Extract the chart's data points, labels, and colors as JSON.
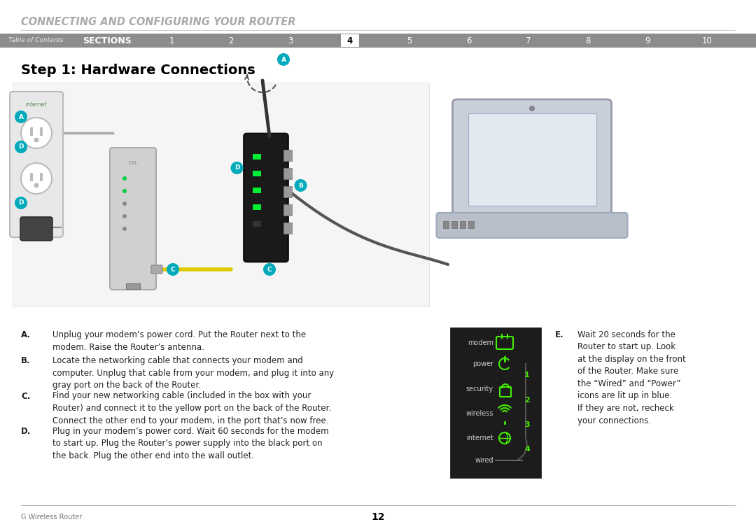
{
  "page_title": "CONNECTING AND CONFIGURING YOUR ROUTER",
  "page_title_color": "#aaaaaa",
  "nav_bg_color": "#8c8c8c",
  "nav_label": "Table of Contents",
  "nav_sections_label": "SECTIONS",
  "nav_numbers": [
    "1",
    "2",
    "3",
    "4",
    "5",
    "6",
    "7",
    "8",
    "9",
    "10"
  ],
  "nav_active": "4",
  "step_title": "Step 1: Hardware Connections",
  "body_text_color": "#222222",
  "bg_color": "#ffffff",
  "footer_left": "G Wireless Router",
  "footer_center": "12",
  "footer_line_color": "#bbbbbb",
  "items": [
    {
      "letter": "A.",
      "text": "Unplug your modem’s power cord. Put the Router next to the\nmodem. Raise the Router’s antenna."
    },
    {
      "letter": "B.",
      "text": "Locate the networking cable that connects your modem and\ncomputer. Unplug that cable from your modem, and plug it into any\ngray port on the back of the Router."
    },
    {
      "letter": "C.",
      "text": "Find your new networking cable (included in the box with your\nRouter) and connect it to the yellow port on the back of the Router.\nConnect the other end to your modem, in the port that’s now free."
    },
    {
      "letter": "D.",
      "text": "Plug in your modem’s power cord. Wait 60 seconds for the modem\nto start up. Plug the Router’s power supply into the black port on\nthe back. Plug the other end into the wall outlet."
    }
  ],
  "item_e_letter": "E.",
  "item_e_text": "Wait 20 seconds for the\nRouter to start up. Look\nat the display on the front\nof the Router. Make sure\nthe “Wired” and “Power”\nicons are lit up in blue.\nIf they are not, recheck\nyour connections.",
  "panel_labels": [
    "modem",
    "power",
    "security",
    "wireless",
    "internet",
    "wired"
  ],
  "panel_numbers": [
    "1",
    "2",
    "3",
    "4"
  ],
  "panel_bg": "#1c1c1c",
  "panel_green": "#44ee00",
  "panel_gray": "#666666",
  "label_circle_color": "#00aabb"
}
